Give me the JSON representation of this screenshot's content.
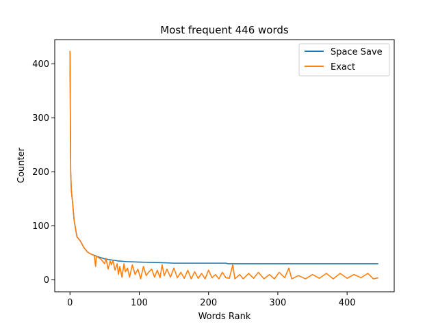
{
  "chart_data": {
    "type": "line",
    "title": "Most frequent 446 words",
    "xlabel": "Words Rank",
    "ylabel": "Counter",
    "xlim": [
      -22,
      468
    ],
    "ylim": [
      -22,
      445
    ],
    "x_ticks": [
      0,
      100,
      200,
      300,
      400
    ],
    "y_ticks": [
      0,
      100,
      200,
      300,
      400
    ],
    "grid": false,
    "legend_position": "top-right",
    "series": [
      {
        "name": "Space Save",
        "color": "#1f77b4",
        "points": [
          [
            0,
            424
          ],
          [
            1,
            200
          ],
          [
            2,
            165
          ],
          [
            4,
            140
          ],
          [
            6,
            110
          ],
          [
            10,
            80
          ],
          [
            15,
            72
          ],
          [
            20,
            60
          ],
          [
            25,
            52
          ],
          [
            30,
            48
          ],
          [
            40,
            43
          ],
          [
            50,
            39
          ],
          [
            60,
            37
          ],
          [
            70,
            35
          ],
          [
            80,
            34
          ],
          [
            100,
            33
          ],
          [
            130,
            32
          ],
          [
            150,
            31
          ],
          [
            200,
            31
          ],
          [
            225,
            31
          ],
          [
            228,
            30
          ],
          [
            300,
            30
          ],
          [
            445,
            30
          ]
        ]
      },
      {
        "name": "Exact",
        "color": "#ff7f0e",
        "points": [
          [
            0,
            424
          ],
          [
            1,
            200
          ],
          [
            2,
            165
          ],
          [
            4,
            140
          ],
          [
            6,
            110
          ],
          [
            10,
            80
          ],
          [
            15,
            72
          ],
          [
            20,
            60
          ],
          [
            25,
            52
          ],
          [
            30,
            48
          ],
          [
            35,
            45
          ],
          [
            37,
            25
          ],
          [
            38,
            44
          ],
          [
            45,
            38
          ],
          [
            50,
            30
          ],
          [
            52,
            40
          ],
          [
            55,
            20
          ],
          [
            58,
            35
          ],
          [
            60,
            28
          ],
          [
            62,
            36
          ],
          [
            65,
            18
          ],
          [
            68,
            30
          ],
          [
            70,
            10
          ],
          [
            72,
            25
          ],
          [
            75,
            5
          ],
          [
            78,
            30
          ],
          [
            80,
            15
          ],
          [
            83,
            22
          ],
          [
            86,
            5
          ],
          [
            90,
            28
          ],
          [
            94,
            10
          ],
          [
            98,
            20
          ],
          [
            102,
            2
          ],
          [
            106,
            25
          ],
          [
            110,
            8
          ],
          [
            114,
            15
          ],
          [
            118,
            20
          ],
          [
            122,
            5
          ],
          [
            126,
            18
          ],
          [
            130,
            4
          ],
          [
            133,
            28
          ],
          [
            136,
            8
          ],
          [
            140,
            20
          ],
          [
            145,
            5
          ],
          [
            150,
            22
          ],
          [
            155,
            4
          ],
          [
            160,
            14
          ],
          [
            165,
            3
          ],
          [
            170,
            18
          ],
          [
            175,
            2
          ],
          [
            180,
            15
          ],
          [
            185,
            3
          ],
          [
            190,
            12
          ],
          [
            195,
            2
          ],
          [
            200,
            18
          ],
          [
            205,
            4
          ],
          [
            210,
            10
          ],
          [
            215,
            2
          ],
          [
            220,
            14
          ],
          [
            225,
            4
          ],
          [
            230,
            3
          ],
          [
            235,
            28
          ],
          [
            238,
            2
          ],
          [
            245,
            10
          ],
          [
            250,
            2
          ],
          [
            258,
            12
          ],
          [
            265,
            3
          ],
          [
            272,
            14
          ],
          [
            280,
            2
          ],
          [
            288,
            10
          ],
          [
            295,
            2
          ],
          [
            302,
            14
          ],
          [
            310,
            4
          ],
          [
            316,
            22
          ],
          [
            320,
            2
          ],
          [
            330,
            8
          ],
          [
            340,
            2
          ],
          [
            350,
            10
          ],
          [
            360,
            3
          ],
          [
            370,
            12
          ],
          [
            380,
            2
          ],
          [
            390,
            12
          ],
          [
            400,
            3
          ],
          [
            410,
            10
          ],
          [
            420,
            4
          ],
          [
            430,
            12
          ],
          [
            438,
            2
          ],
          [
            445,
            4
          ]
        ]
      }
    ]
  }
}
